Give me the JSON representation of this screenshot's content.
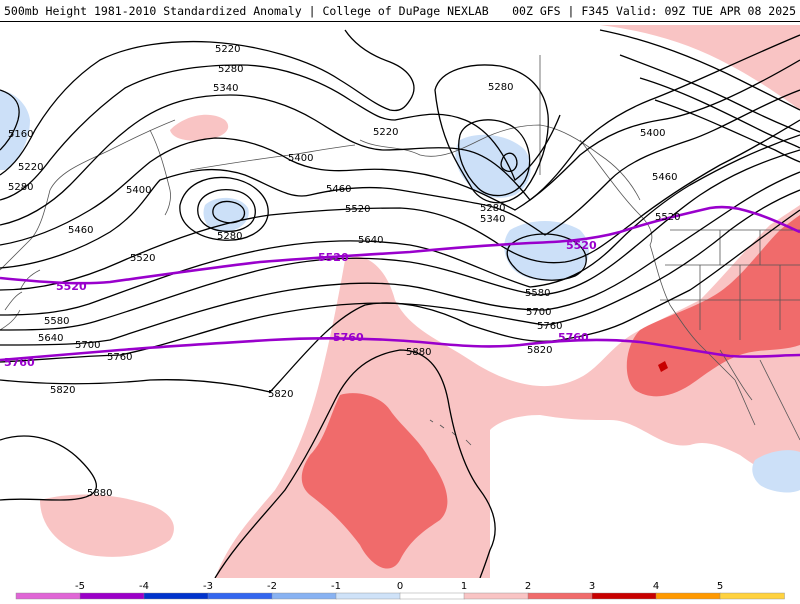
{
  "header": {
    "title_left": "500mb Height 1981-2010 Standardized Anomaly | College of DuPage NEXLAB",
    "title_right": "00Z GFS | F345 Valid: 09Z TUE APR 08 2025"
  },
  "colors": {
    "contour": "#000000",
    "reference_contour": "#9900cc",
    "coastline": "#555555",
    "anomaly_pos_1": "#f9c4c4",
    "anomaly_pos_2": "#f06b6b",
    "anomaly_pos_3": "#c80000",
    "anomaly_neg_1": "#cce0f8"
  },
  "contour_labels": [
    "5160",
    "5220",
    "5280",
    "5340",
    "5400",
    "5460",
    "5520",
    "5580",
    "5640",
    "5700",
    "5760",
    "5820",
    "5880"
  ],
  "reference_contours": [
    "5520",
    "5760"
  ],
  "colorbar": {
    "ticks": [
      "-5",
      "-4",
      "-3",
      "-2",
      "-1",
      "0",
      "1",
      "2",
      "3",
      "4",
      "5"
    ],
    "colors": [
      "#e066d6",
      "#9b00c8",
      "#0033cc",
      "#3366ee",
      "#88b2f2",
      "#cfe2f8",
      "#ffffff",
      "#f9c4c4",
      "#f06b6b",
      "#c80000",
      "#ff9900",
      "#ffd23f"
    ]
  }
}
